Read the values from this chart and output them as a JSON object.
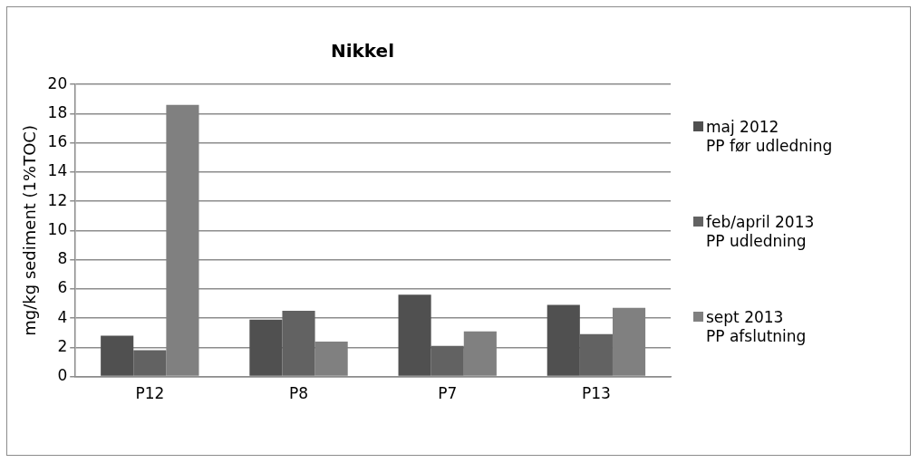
{
  "chart_data": {
    "type": "bar",
    "title": "Nikkel",
    "ylabel": "mg/kg sediment (1%TOC)",
    "categories": [
      "P12",
      "P8",
      "P7",
      "P13"
    ],
    "series": [
      {
        "name": "maj 2012\nPP før udledning",
        "color": "#505050",
        "values": [
          2.8,
          3.9,
          5.6,
          4.9
        ]
      },
      {
        "name": "feb/april 2013\nPP udledning",
        "color": "#626262",
        "values": [
          1.8,
          4.5,
          2.1,
          2.9
        ]
      },
      {
        "name": "sept 2013\nPP afslutning",
        "color": "#808080",
        "values": [
          18.6,
          2.4,
          3.1,
          4.7
        ]
      }
    ],
    "ylim": [
      0,
      20
    ],
    "yticks": [
      0,
      2,
      4,
      6,
      8,
      10,
      12,
      14,
      16,
      18,
      20
    ],
    "grid": "y",
    "legend": "right"
  }
}
